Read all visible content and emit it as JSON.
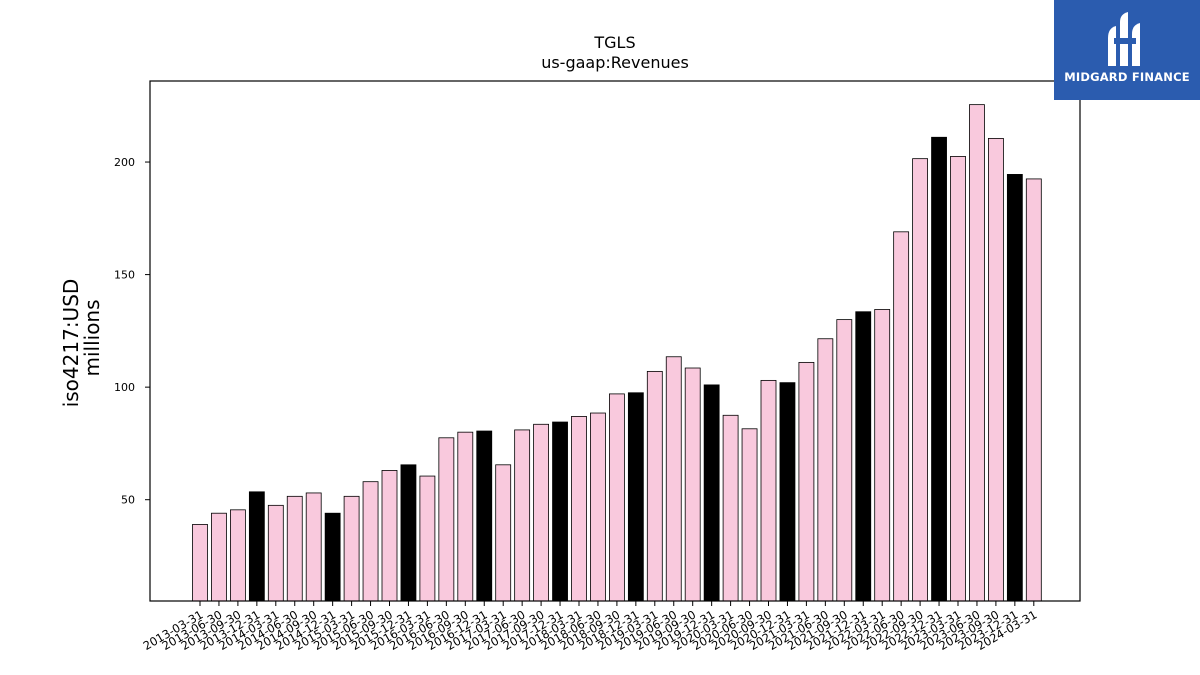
{
  "brand": {
    "name": "MIDGARD FINANCE",
    "icon": "midgard-logo-icon",
    "bg_color": "#2b5caf"
  },
  "chart_data": {
    "type": "bar",
    "title": "TGLS",
    "subtitle": "us-gaap:Revenues",
    "ylabel_line1": "iso4217:USD",
    "ylabel_line2": "millions",
    "xlabel": "",
    "ylim": [
      5,
      236
    ],
    "yticks": [
      50,
      100,
      150,
      200
    ],
    "grid": false,
    "colors": {
      "quarter": "#f9c9dd",
      "fiscal_year_end": "#000000",
      "edge": "#000000"
    },
    "categories": [
      "2013-03-31",
      "2013-06-30",
      "2013-09-30",
      "2013-12-31",
      "2014-03-31",
      "2014-06-30",
      "2014-09-30",
      "2014-12-31",
      "2015-03-31",
      "2015-06-30",
      "2015-09-30",
      "2015-12-31",
      "2016-03-31",
      "2016-06-30",
      "2016-09-30",
      "2016-12-31",
      "2017-03-31",
      "2017-06-30",
      "2017-09-30",
      "2017-12-31",
      "2018-03-31",
      "2018-06-30",
      "2018-09-30",
      "2018-12-31",
      "2019-03-31",
      "2019-06-30",
      "2019-09-30",
      "2019-12-31",
      "2020-03-31",
      "2020-06-30",
      "2020-09-30",
      "2020-12-31",
      "2021-03-31",
      "2021-06-30",
      "2021-09-30",
      "2021-12-31",
      "2022-03-31",
      "2022-06-30",
      "2022-09-30",
      "2022-12-31",
      "2023-03-31",
      "2023-06-30",
      "2023-09-30",
      "2023-12-31",
      "2024-03-31"
    ],
    "values": [
      39,
      44,
      45.5,
      53.5,
      47.5,
      51.5,
      53,
      44,
      51.5,
      58,
      63,
      65.5,
      60.5,
      77.5,
      80,
      80.5,
      65.5,
      81,
      83.5,
      84.5,
      87,
      88.5,
      97,
      97.5,
      107,
      113.5,
      108.5,
      101,
      87.5,
      81.5,
      103,
      102,
      111,
      121.5,
      130,
      133.5,
      134.5,
      169,
      201.5,
      211,
      202.5,
      225.5,
      210.5,
      194.5,
      192.5
    ],
    "highlight": [
      false,
      false,
      false,
      true,
      false,
      false,
      false,
      true,
      false,
      false,
      false,
      true,
      false,
      false,
      false,
      true,
      false,
      false,
      false,
      true,
      false,
      false,
      false,
      true,
      false,
      false,
      false,
      true,
      false,
      false,
      false,
      true,
      false,
      false,
      false,
      true,
      false,
      false,
      false,
      true,
      false,
      false,
      false,
      true,
      false
    ]
  }
}
